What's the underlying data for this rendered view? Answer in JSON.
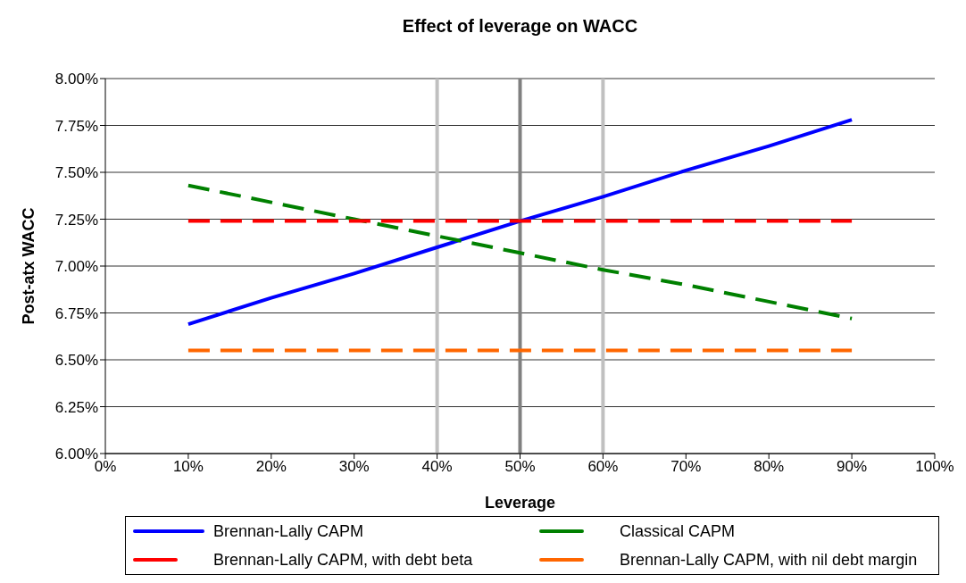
{
  "chart_data": {
    "type": "line",
    "title": "Effect of leverage on WACC",
    "xlabel": "Leverage",
    "ylabel": "Post-atx WACC",
    "x": [
      10,
      20,
      30,
      40,
      50,
      60,
      70,
      80,
      90
    ],
    "series": [
      {
        "name": "Brennan-Lally CAPM",
        "color": "#0000ff",
        "line_style": "solid",
        "values": [
          6.69,
          6.83,
          6.96,
          7.1,
          7.24,
          7.37,
          7.51,
          7.64,
          7.78
        ]
      },
      {
        "name": "Classical CAPM",
        "color": "#008000",
        "line_style": "dashed",
        "values": [
          7.43,
          7.34,
          7.25,
          7.16,
          7.07,
          6.98,
          6.9,
          6.81,
          6.72
        ]
      },
      {
        "name": "Brennan-Lally CAPM, with debt beta",
        "color": "#ff0000",
        "line_style": "dashed",
        "values": [
          7.24,
          7.24,
          7.24,
          7.24,
          7.24,
          7.24,
          7.24,
          7.24,
          7.24
        ]
      },
      {
        "name": "Brennan-Lally CAPM, with nil debt margin",
        "color": "#ff6600",
        "line_style": "dashed",
        "values": [
          6.55,
          6.55,
          6.55,
          6.55,
          6.55,
          6.55,
          6.55,
          6.55,
          6.55
        ]
      }
    ],
    "xlim": [
      0,
      100
    ],
    "xticks": [
      {
        "value": 0,
        "label": "0%"
      },
      {
        "value": 10,
        "label": "10%"
      },
      {
        "value": 20,
        "label": "20%"
      },
      {
        "value": 30,
        "label": "30%"
      },
      {
        "value": 40,
        "label": "40%"
      },
      {
        "value": 50,
        "label": "50%"
      },
      {
        "value": 60,
        "label": "60%"
      },
      {
        "value": 70,
        "label": "70%"
      },
      {
        "value": 80,
        "label": "80%"
      },
      {
        "value": 90,
        "label": "90%"
      },
      {
        "value": 100,
        "label": "100%"
      }
    ],
    "ylim": [
      6,
      8
    ],
    "yticks": [
      {
        "value": 6,
        "label": "6.00%"
      },
      {
        "value": 6.25,
        "label": "6.25%"
      },
      {
        "value": 6.5,
        "label": "6.50%"
      },
      {
        "value": 6.75,
        "label": "6.75%"
      },
      {
        "value": 7,
        "label": "7.00%"
      },
      {
        "value": 7.25,
        "label": "7.25%"
      },
      {
        "value": 7.5,
        "label": "7.50%"
      },
      {
        "value": 7.75,
        "label": "7.75%"
      },
      {
        "value": 8,
        "label": "8.00%"
      }
    ],
    "ref_lines": [
      {
        "axis": "x",
        "value": 40,
        "color": "#c0c0c0"
      },
      {
        "axis": "x",
        "value": 50,
        "color": "#808080"
      },
      {
        "axis": "x",
        "value": 60,
        "color": "#c0c0c0"
      }
    ],
    "grid": "y",
    "legend": "bottom",
    "marker": "none"
  }
}
